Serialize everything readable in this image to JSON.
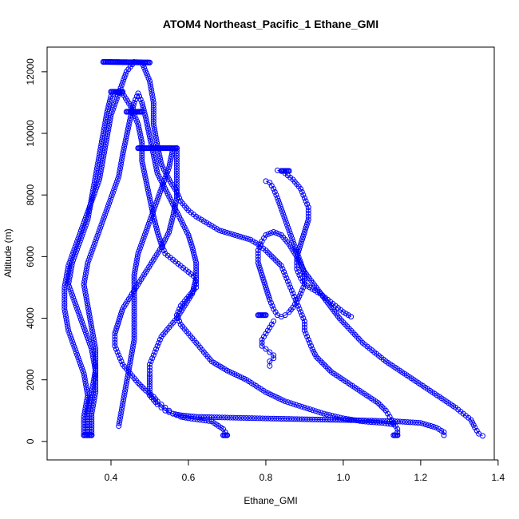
{
  "chart_data": {
    "type": "scatter",
    "title": "ATOM4 Northeast_Pacific_1 Ethane_GMI",
    "xlabel": "Ethane_GMI",
    "ylabel": "Altitude (m)",
    "xlim": [
      0.235,
      1.39
    ],
    "ylim": [
      -600,
      12800
    ],
    "xticks": [
      0.4,
      0.6,
      0.8,
      1.0,
      1.2,
      1.4
    ],
    "xtick_labels": [
      "0.4",
      "0.6",
      "0.8",
      "1.0",
      "1.2",
      "1.4"
    ],
    "yticks": [
      0,
      2000,
      4000,
      6000,
      8000,
      10000,
      12000
    ],
    "ytick_labels": [
      "0",
      "2000",
      "4000",
      "6000",
      "8000",
      "10000",
      "12000"
    ],
    "grid": false,
    "marker": "open-circle",
    "line_style": "b",
    "color": "#0000ff",
    "series": [
      {
        "x": [
          0.33,
          0.33,
          0.34,
          0.33,
          0.31,
          0.29,
          0.28,
          0.28,
          0.29,
          0.31,
          0.33,
          0.35,
          0.37,
          0.38,
          0.39,
          0.4,
          0.42,
          0.44,
          0.46,
          0.48,
          0.5,
          0.51,
          0.51,
          0.52,
          0.53,
          0.55,
          0.57,
          0.58,
          0.6,
          0.62,
          0.64,
          0.66,
          0.68,
          0.72,
          0.76,
          0.78,
          0.8,
          0.82,
          0.84,
          0.85,
          0.86,
          0.87,
          0.88,
          0.89,
          0.9,
          0.9,
          0.91,
          0.92,
          0.93,
          0.95,
          0.97,
          1.0,
          1.03,
          1.06,
          1.09,
          1.11,
          1.12,
          1.13,
          1.14,
          1.14
        ],
        "y": [
          200,
          800,
          1500,
          2200,
          2900,
          3600,
          4300,
          5000,
          5700,
          6400,
          7100,
          7800,
          8500,
          9200,
          9900,
          10600,
          11300,
          12000,
          12320,
          12300,
          11700,
          11000,
          10300,
          9600,
          9000,
          8500,
          8100,
          7800,
          7500,
          7300,
          7150,
          7000,
          6850,
          6700,
          6550,
          6400,
          6200,
          5950,
          5700,
          5400,
          5100,
          4800,
          4500,
          4200,
          3900,
          3600,
          3300,
          3000,
          2750,
          2500,
          2250,
          2000,
          1750,
          1500,
          1250,
          1000,
          800,
          600,
          400,
          200
        ]
      },
      {
        "x": [
          0.34,
          0.34,
          0.35,
          0.36,
          0.36,
          0.35,
          0.34,
          0.33,
          0.34,
          0.36,
          0.38,
          0.4,
          0.42,
          0.43,
          0.44,
          0.45,
          0.46,
          0.47,
          0.48,
          0.49,
          0.5,
          0.51,
          0.52,
          0.54,
          0.56,
          0.58,
          0.6,
          0.61,
          0.62,
          0.62,
          0.61,
          0.59,
          0.57,
          0.55,
          0.53,
          0.52,
          0.51,
          0.5,
          0.5,
          0.5,
          0.5,
          0.5,
          0.51,
          0.52,
          0.53,
          0.54,
          0.55,
          0.56,
          0.57,
          0.58,
          0.6,
          0.63,
          0.66,
          0.69,
          0.7
        ],
        "y": [
          200,
          900,
          1600,
          2300,
          3000,
          3700,
          4400,
          5100,
          5800,
          6500,
          7200,
          7900,
          8600,
          9300,
          9900,
          10500,
          11000,
          11300,
          11000,
          10500,
          9900,
          9300,
          8700,
          8200,
          7700,
          7200,
          6700,
          6300,
          5800,
          5300,
          4800,
          4400,
          4000,
          3700,
          3400,
          3100,
          2800,
          2500,
          2200,
          1950,
          1700,
          1500,
          1350,
          1200,
          1100,
          1000,
          950,
          900,
          850,
          800,
          750,
          700,
          650,
          400,
          200
        ]
      },
      {
        "x": [
          0.35,
          0.35,
          0.36,
          0.36,
          0.35,
          0.33,
          0.31,
          0.29,
          0.3,
          0.32,
          0.34,
          0.35,
          0.36,
          0.37,
          0.38,
          0.39,
          0.4,
          0.41,
          0.43,
          0.45,
          0.47,
          0.48,
          0.48,
          0.49,
          0.5,
          0.51,
          0.52,
          0.53,
          0.54,
          0.56,
          0.58,
          0.6,
          0.62,
          0.62,
          0.6,
          0.58,
          0.57,
          0.58,
          0.6,
          0.62,
          0.64,
          0.66,
          0.7,
          0.75,
          0.8,
          0.85,
          0.9,
          0.95,
          1.0,
          1.05,
          1.1,
          1.13
        ],
        "y": [
          200,
          900,
          1600,
          2300,
          3000,
          3700,
          4400,
          5100,
          5800,
          6500,
          7200,
          7900,
          8600,
          9300,
          10000,
          10700,
          11200,
          11350,
          11300,
          10900,
          10300,
          9700,
          9100,
          8500,
          7900,
          7300,
          6800,
          6400,
          6100,
          5900,
          5700,
          5500,
          5300,
          5000,
          4700,
          4400,
          4100,
          3800,
          3500,
          3200,
          2900,
          2600,
          2300,
          2000,
          1600,
          1300,
          1100,
          900,
          750,
          650,
          600,
          550
        ]
      },
      {
        "x": [
          0.42,
          0.43,
          0.44,
          0.45,
          0.46,
          0.46,
          0.46,
          0.46,
          0.47,
          0.49,
          0.51,
          0.53,
          0.55,
          0.56,
          0.57,
          0.57,
          0.57,
          0.57,
          0.56,
          0.55,
          0.53,
          0.51,
          0.49,
          0.47,
          0.45,
          0.43,
          0.42,
          0.41,
          0.41,
          0.42,
          0.43,
          0.45,
          0.47,
          0.49,
          0.51,
          0.52,
          0.53,
          0.54,
          0.55,
          0.55,
          0.56,
          0.58,
          0.62,
          0.68,
          0.75,
          0.82,
          0.9,
          0.98,
          1.06,
          1.14,
          1.2,
          1.24,
          1.26,
          1.26
        ],
        "y": [
          500,
          1200,
          1900,
          2600,
          3300,
          4000,
          4700,
          5400,
          6100,
          6800,
          7500,
          8200,
          8900,
          9500,
          9520,
          9100,
          8500,
          7900,
          7300,
          6800,
          6300,
          5900,
          5500,
          5100,
          4700,
          4300,
          3900,
          3500,
          3100,
          2800,
          2500,
          2200,
          1900,
          1650,
          1450,
          1300,
          1200,
          1100,
          1000,
          950,
          900,
          850,
          800,
          780,
          760,
          740,
          720,
          700,
          680,
          650,
          600,
          450,
          300,
          200
        ]
      },
      {
        "x": [
          0.8,
          0.81,
          0.82,
          0.83,
          0.84,
          0.85,
          0.86,
          0.87,
          0.88,
          0.89,
          0.9,
          0.9,
          0.89,
          0.88,
          0.87,
          0.86,
          0.85,
          0.84,
          0.83,
          0.82,
          0.81,
          0.8,
          0.79,
          0.78,
          0.78,
          0.79,
          0.8,
          0.82,
          0.84,
          0.86,
          0.88,
          0.9,
          0.93,
          0.96,
          0.99,
          1.02,
          1.05,
          1.08,
          1.11,
          1.14,
          1.17,
          1.2,
          1.23,
          1.26,
          1.29,
          1.31,
          1.33,
          1.34,
          1.35,
          1.36
        ],
        "y": [
          8450,
          8400,
          8200,
          7900,
          7550,
          7200,
          6850,
          6500,
          6150,
          5800,
          5450,
          5100,
          4800,
          4550,
          4350,
          4200,
          4100,
          4050,
          4100,
          4300,
          4600,
          5000,
          5400,
          5800,
          6200,
          6500,
          6700,
          6800,
          6700,
          6400,
          6000,
          5500,
          5000,
          4500,
          4000,
          3600,
          3200,
          2900,
          2600,
          2350,
          2100,
          1850,
          1600,
          1350,
          1100,
          900,
          700,
          450,
          250,
          180
        ]
      },
      {
        "x": [
          0.83,
          0.84,
          0.85,
          0.87,
          0.89,
          0.9,
          0.91,
          0.91,
          0.9,
          0.89,
          0.88,
          0.88,
          0.89,
          0.9,
          0.92,
          0.94,
          0.96,
          0.98,
          1.0,
          1.02
        ],
        "y": [
          8800,
          8780,
          8700,
          8500,
          8200,
          7900,
          7600,
          7200,
          6800,
          6400,
          6000,
          5600,
          5300,
          5100,
          4950,
          4800,
          4600,
          4400,
          4200,
          4050
        ]
      },
      {
        "x": [
          0.82,
          0.81,
          0.8,
          0.79,
          0.79,
          0.8,
          0.81,
          0.82,
          0.82,
          0.81,
          0.81
        ],
        "y": [
          3900,
          3700,
          3500,
          3300,
          3100,
          3000,
          2900,
          2800,
          2700,
          2600,
          2450
        ]
      }
    ],
    "bold_segments": [
      {
        "x": [
          0.38,
          0.5
        ],
        "y": [
          12320,
          12300
        ]
      },
      {
        "x": [
          0.4,
          0.43
        ],
        "y": [
          11350,
          11350
        ]
      },
      {
        "x": [
          0.44,
          0.48
        ],
        "y": [
          10700,
          10700
        ]
      },
      {
        "x": [
          0.47,
          0.57
        ],
        "y": [
          9520,
          9520
        ]
      },
      {
        "x": [
          0.33,
          0.35
        ],
        "y": [
          200,
          200
        ]
      },
      {
        "x": [
          0.69,
          0.7
        ],
        "y": [
          200,
          200
        ]
      },
      {
        "x": [
          1.13,
          1.14
        ],
        "y": [
          200,
          200
        ]
      },
      {
        "x": [
          0.78,
          0.8
        ],
        "y": [
          4100,
          4100
        ]
      },
      {
        "x": [
          0.84,
          0.86
        ],
        "y": [
          8780,
          8780
        ]
      }
    ]
  }
}
